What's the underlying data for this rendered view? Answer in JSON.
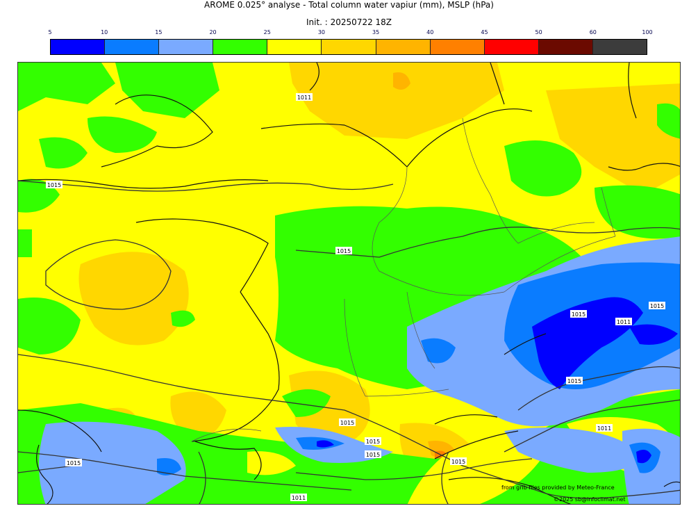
{
  "header": {
    "title": "AROME 0.025° analyse - Total column water vapiur (mm), MSLP (hPa)",
    "init": "Init. : 20250722 18Z"
  },
  "legend": {
    "ticks": [
      "5",
      "10",
      "15",
      "20",
      "25",
      "30",
      "35",
      "40",
      "45",
      "50",
      "60",
      "100"
    ],
    "colors": [
      "#0000ff",
      "#0a7cff",
      "#7aaaff",
      "#33ff00",
      "#ffff00",
      "#ffd700",
      "#ffb400",
      "#ff8000",
      "#ff0000",
      "#6b0a00",
      "#3c3c3c"
    ]
  },
  "map": {
    "isobar_labels": [
      "1011",
      "1015",
      "1015",
      "1015",
      "1015",
      "1011",
      "1015",
      "1015",
      "1015",
      "1015",
      "1015",
      "1015",
      "1011",
      "1011"
    ]
  },
  "credits": {
    "source": "from grib files provided by Meteo-France",
    "copyright": "©2025 sb@infoclimat.net"
  }
}
